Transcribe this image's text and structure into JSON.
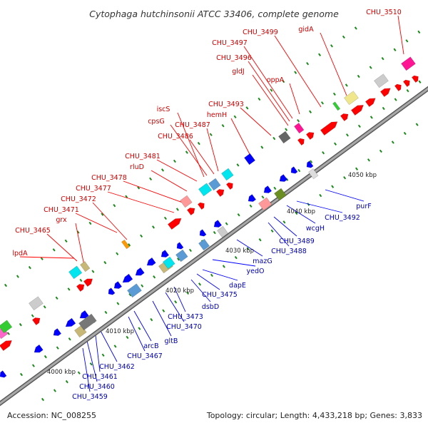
{
  "title": "Cytophaga hutchinsonii ATCC 33406, complete genome",
  "footer": {
    "accession": "Accession: NC_008255",
    "summary": "Topology: circular; Length: 4,433,218 bp; Genes: 3,833"
  },
  "colors": {
    "forward": "#ff0000",
    "reverse": "#0000ff",
    "backbone": "#8a8a8a",
    "forward_label": "#cc0000",
    "reverse_label": "#0000aa",
    "tick": "#1a8a1a"
  },
  "ticks": [
    {
      "label": "4000 kbp"
    },
    {
      "label": "4010 kbp"
    },
    {
      "label": "4020 kbp"
    },
    {
      "label": "4030 kbp"
    },
    {
      "label": "4040 kbp"
    },
    {
      "label": "4050 kbp"
    }
  ],
  "forward_labels": [
    "lpdA",
    "CHU_3465",
    "grx",
    "CHU_3471",
    "CHU_3472",
    "CHU_3477",
    "CHU_3478",
    "rluD",
    "CHU_3481",
    "CHU_3486",
    "cpsG",
    "iscS",
    "CHU_3487",
    "hemH",
    "CHU_3493",
    "gldJ",
    "CHU_3496",
    "CHU_3497",
    "oppA",
    "CHU_3499",
    "gidA",
    "CHU_3510"
  ],
  "reverse_labels": [
    "CHU_3459",
    "CHU_3460",
    "CHU_3461",
    "CHU_3462",
    "arcB",
    "CHU_3467",
    "gltB",
    "CHU_3470",
    "CHU_3473",
    "dsbD",
    "CHU_3475",
    "dapE",
    "yedO",
    "mazG",
    "CHU_3488",
    "CHU_3489",
    "wcgH",
    "CHU_3492",
    "purF"
  ]
}
